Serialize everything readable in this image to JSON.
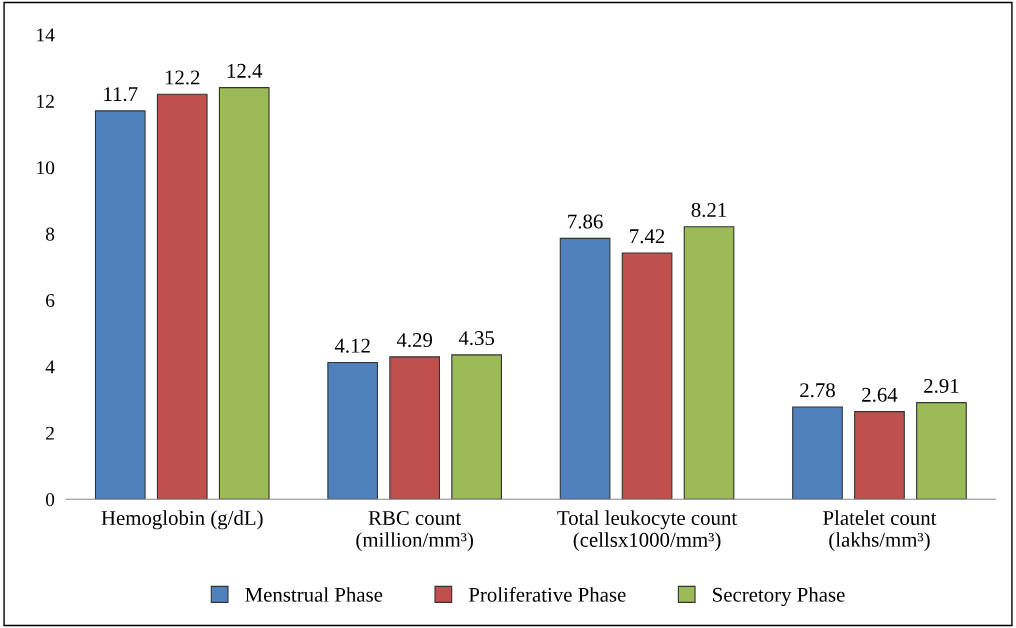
{
  "chart_data": {
    "type": "bar",
    "categories": [
      "Hemoglobin (g/dL)",
      "RBC count\n(million/mm³)",
      "Total leukocyte count\n(cellsx1000/mm³)",
      "Platelet count\n(lakhs/mm³)"
    ],
    "series": [
      {
        "name": "Menstrual Phase",
        "color": "#4f81bd",
        "values": [
          11.7,
          4.12,
          7.86,
          2.78
        ]
      },
      {
        "name": "Proliferative Phase",
        "color": "#c0504d",
        "values": [
          12.2,
          4.29,
          7.42,
          2.64
        ]
      },
      {
        "name": "Secretory Phase",
        "color": "#9bbb59",
        "values": [
          12.4,
          4.35,
          8.21,
          2.91
        ]
      }
    ],
    "ylim": [
      0,
      14
    ],
    "yticks": [
      0,
      2,
      4,
      6,
      8,
      10,
      12,
      14
    ],
    "data_labels": true,
    "grid": false,
    "legend": "bottom"
  }
}
